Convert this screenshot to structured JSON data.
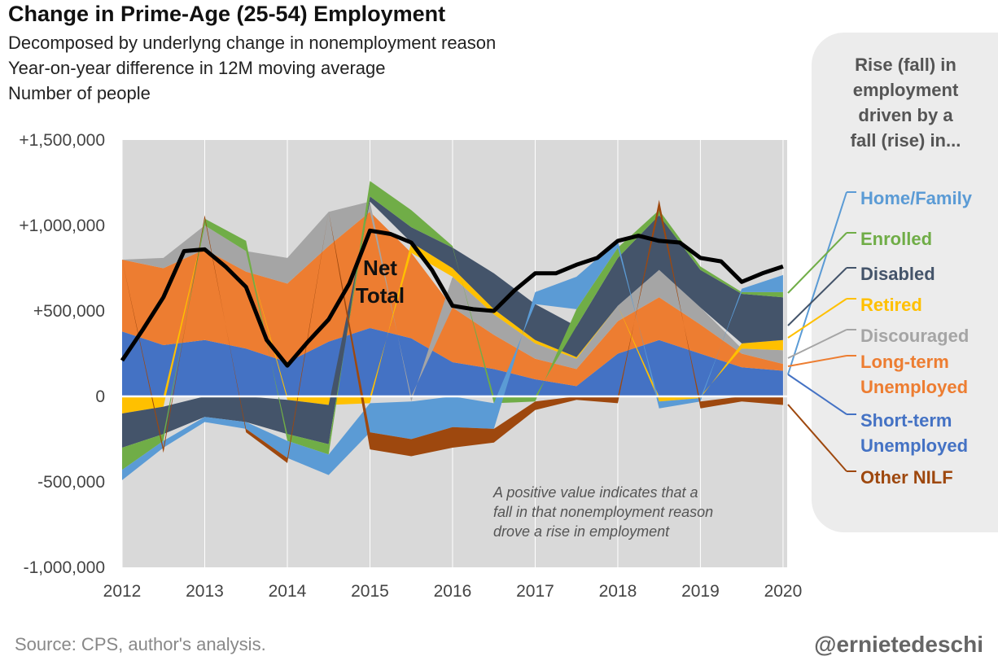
{
  "title": "Change in Prime-Age (25-54) Employment",
  "subtitle_lines": [
    "Decomposed by underlyng change in nonemployment reason",
    "Year-on-year difference in 12M moving average",
    "Number of people"
  ],
  "legend_heading": "Rise (fall) in\nemployment\ndriven by a\nfall (rise) in...",
  "source": "Source: CPS, author's analysis.",
  "handle": "@ernietedeschi",
  "annotation_lines": [
    "A positive value indicates that a",
    "fall in that nonemployment reason",
    "drove a rise in employment"
  ],
  "net_total_label": [
    "Net",
    "Total"
  ],
  "chart_data": {
    "type": "area",
    "stacked": true,
    "x_ticks": [
      "2012",
      "2013",
      "2014",
      "2015",
      "2016",
      "2017",
      "2018",
      "2019",
      "2020"
    ],
    "y_ticks": [
      "+1,500,000",
      "+1,000,000",
      "+500,000",
      "0",
      "-500,000",
      "-1,000,000"
    ],
    "ylim": [
      -1000000,
      1500000
    ],
    "xlim": [
      2012,
      2020.05
    ],
    "x": [
      2012.0,
      2012.5,
      2013.0,
      2013.5,
      2014.0,
      2014.5,
      2015.0,
      2015.5,
      2016.0,
      2016.5,
      2017.0,
      2017.5,
      2018.0,
      2018.5,
      2019.0,
      2019.5,
      2020.0
    ],
    "series": [
      {
        "name": "Short-term Unemployed",
        "color": "#4472c4",
        "values": [
          380000,
          300000,
          330000,
          280000,
          200000,
          320000,
          400000,
          340000,
          200000,
          160000,
          100000,
          60000,
          250000,
          330000,
          250000,
          170000,
          150000
        ]
      },
      {
        "name": "Long-term Unemployed",
        "color": "#ed7d31",
        "values": [
          420000,
          450000,
          530000,
          450000,
          460000,
          560000,
          680000,
          500000,
          320000,
          200000,
          120000,
          100000,
          190000,
          250000,
          170000,
          80000,
          40000
        ]
      },
      {
        "name": "Discouraged",
        "color": "#a5a5a5",
        "values": [
          0,
          60000,
          140000,
          120000,
          150000,
          200000,
          60000,
          -30000,
          180000,
          120000,
          90000,
          60000,
          90000,
          160000,
          100000,
          30000,
          80000
        ]
      },
      {
        "name": "Retired",
        "color": "#ffc000",
        "values": [
          -100000,
          -60000,
          0,
          0,
          -20000,
          -50000,
          -40000,
          60000,
          50000,
          30000,
          20000,
          10000,
          0,
          -30000,
          -10000,
          30000,
          60000
        ]
      },
      {
        "name": "Disabled",
        "color": "#44546a",
        "values": [
          -200000,
          -160000,
          -120000,
          -150000,
          -200000,
          -230000,
          30000,
          90000,
          120000,
          210000,
          210000,
          180000,
          280000,
          320000,
          220000,
          290000,
          250000
        ]
      },
      {
        "name": "Enrolled",
        "color": "#70ad47",
        "values": [
          -130000,
          -40000,
          40000,
          60000,
          -40000,
          -60000,
          90000,
          100000,
          10000,
          -40000,
          -30000,
          100000,
          60000,
          30000,
          20000,
          10000,
          30000
        ]
      },
      {
        "name": "Home/Family",
        "color": "#5b9bd5",
        "values": [
          -60000,
          -40000,
          -30000,
          -40000,
          -100000,
          -120000,
          -170000,
          -220000,
          -180000,
          -150000,
          70000,
          190000,
          40000,
          -40000,
          -20000,
          20000,
          100000
        ]
      },
      {
        "name": "Other NILF",
        "color": "#9e480e",
        "values": [
          0,
          -30000,
          20000,
          -20000,
          -30000,
          0,
          -100000,
          -100000,
          -120000,
          -80000,
          -50000,
          -20000,
          -40000,
          60000,
          -40000,
          -30000,
          -50000
        ]
      }
    ],
    "net_total": {
      "name": "Net Total",
      "color": "#000000",
      "x": [
        2012.0,
        2012.25,
        2012.5,
        2012.75,
        2013.0,
        2013.25,
        2013.5,
        2013.75,
        2014.0,
        2014.25,
        2014.5,
        2014.75,
        2015.0,
        2015.25,
        2015.5,
        2015.75,
        2016.0,
        2016.25,
        2016.5,
        2016.75,
        2017.0,
        2017.25,
        2017.5,
        2017.75,
        2018.0,
        2018.25,
        2018.5,
        2018.75,
        2019.0,
        2019.25,
        2019.5,
        2019.75,
        2020.0
      ],
      "values": [
        210000,
        390000,
        580000,
        850000,
        860000,
        760000,
        640000,
        330000,
        180000,
        320000,
        450000,
        660000,
        970000,
        950000,
        900000,
        740000,
        530000,
        510000,
        500000,
        620000,
        720000,
        720000,
        770000,
        810000,
        910000,
        940000,
        910000,
        900000,
        810000,
        790000,
        670000,
        720000,
        760000
      ]
    },
    "legend": [
      {
        "label": "Home/Family",
        "color": "#5b9bd5"
      },
      {
        "label": "Enrolled",
        "color": "#70ad47"
      },
      {
        "label": "Disabled",
        "color": "#44546a"
      },
      {
        "label": "Retired",
        "color": "#ffc000"
      },
      {
        "label": "Discouraged",
        "color": "#a5a5a5"
      },
      {
        "label": "Long-term Unemployed",
        "color": "#ed7d31"
      },
      {
        "label": "Short-term Unemployed",
        "color": "#4472c4"
      },
      {
        "label": "Other NILF",
        "color": "#9e480e"
      }
    ],
    "legend_placement": "right",
    "grid": true
  }
}
